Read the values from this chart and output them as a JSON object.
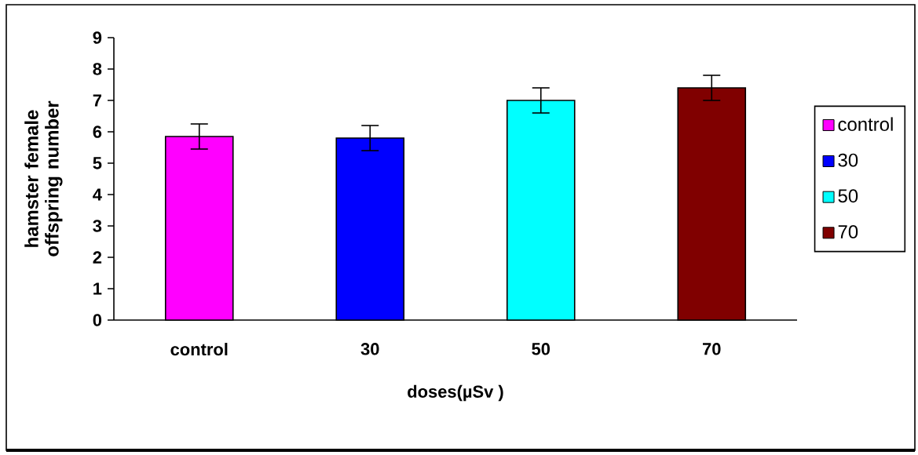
{
  "chart_data": {
    "type": "bar",
    "xlabel": "doses(µSv )",
    "ylabel": "hamster female offspring number",
    "categories": [
      "control",
      "30",
      "50",
      "70"
    ],
    "series": [
      {
        "name": "control",
        "color": "#ff00ff",
        "values": [
          5.85,
          null,
          null,
          null
        ],
        "errors": [
          0.4,
          null,
          null,
          null
        ]
      },
      {
        "name": "30",
        "color": "#0000ff",
        "values": [
          null,
          5.8,
          null,
          null
        ],
        "errors": [
          null,
          0.4,
          null,
          null
        ]
      },
      {
        "name": "50",
        "color": "#00ffff",
        "values": [
          null,
          null,
          7.0,
          null
        ],
        "errors": [
          null,
          null,
          0.4,
          null
        ]
      },
      {
        "name": "70",
        "color": "#800000",
        "values": [
          null,
          null,
          null,
          7.4
        ],
        "errors": [
          null,
          null,
          null,
          0.4
        ]
      }
    ],
    "ylim": [
      0,
      9
    ],
    "yticks": [
      0,
      1,
      2,
      3,
      4,
      5,
      6,
      7,
      8,
      9
    ],
    "legend": "right"
  }
}
